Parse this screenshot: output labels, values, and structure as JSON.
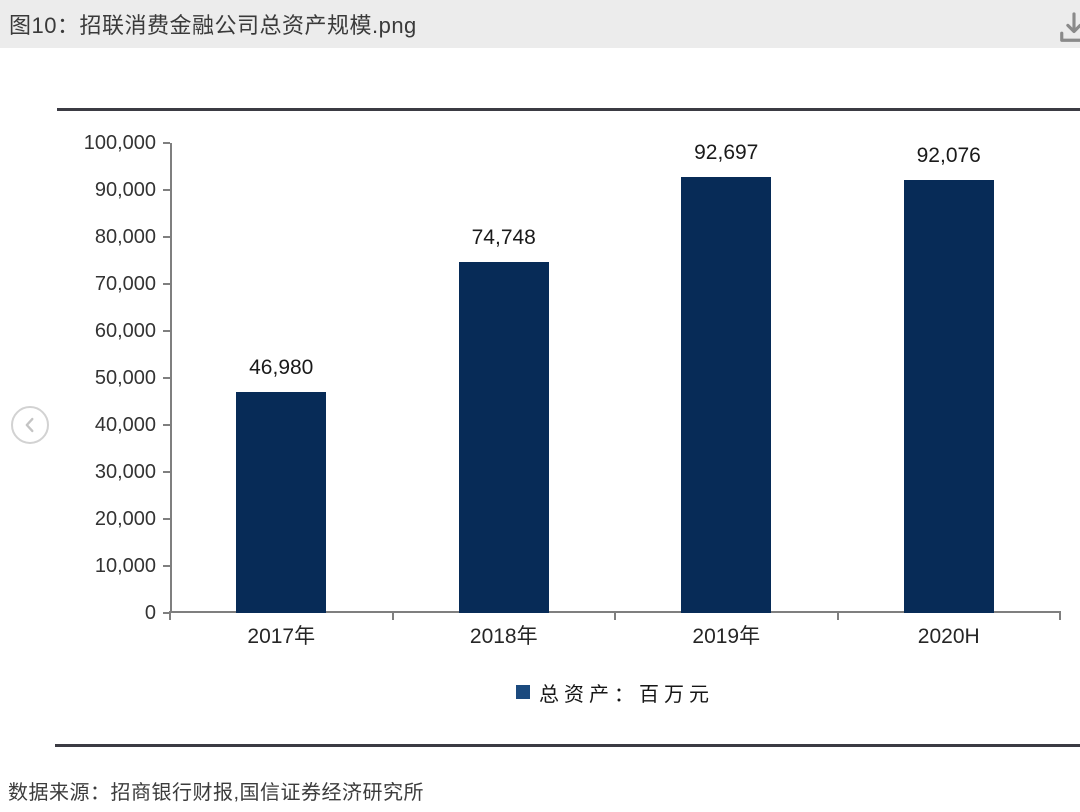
{
  "header": {
    "title": "图10：招联消费金融公司总资产规模.png"
  },
  "icons": {
    "download": "download-icon",
    "prev": "chevron-left-icon"
  },
  "chart_data": {
    "type": "bar",
    "title": "招联消费金融公司总资产规模",
    "categories": [
      "2017年",
      "2018年",
      "2019年",
      "2020H"
    ],
    "values": [
      46980,
      74748,
      92697,
      92076
    ],
    "value_labels": [
      "46,980",
      "74,748",
      "92,697",
      "92,076"
    ],
    "ylim": [
      0,
      100000
    ],
    "ytick_step": 10000,
    "ytick_labels": [
      "0",
      "10,000",
      "20,000",
      "30,000",
      "40,000",
      "50,000",
      "60,000",
      "70,000",
      "80,000",
      "90,000",
      "100,000"
    ],
    "grid": false,
    "legend": [
      "总资产：百万元"
    ],
    "legend_position": "bottom",
    "bar_color": "#072b57",
    "legend_swatch_color": "#1b4a7e",
    "axis_color": "#7f7f7f"
  },
  "footer": {
    "source": "数据来源：招商银行财报,国信证券经济研究所"
  }
}
